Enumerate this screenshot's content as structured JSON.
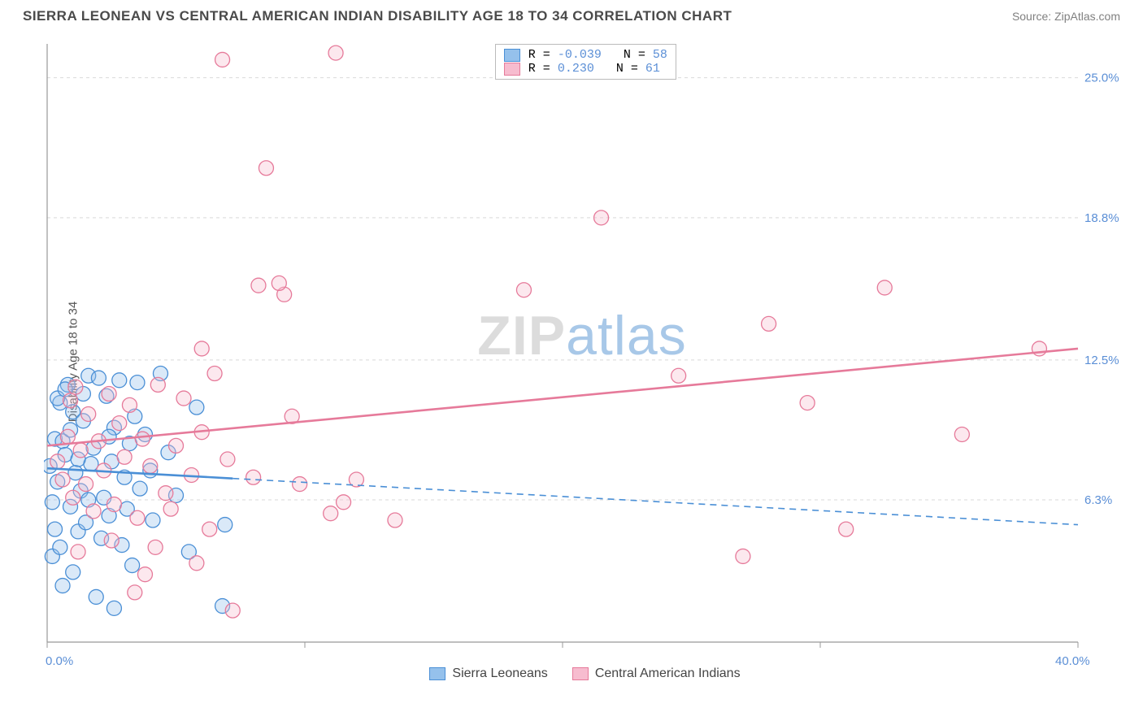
{
  "header": {
    "title": "SIERRA LEONEAN VS CENTRAL AMERICAN INDIAN DISABILITY AGE 18 TO 34 CORRELATION CHART",
    "source": "Source: ZipAtlas.com"
  },
  "watermark": {
    "zip": "ZIP",
    "atlas": "atlas"
  },
  "chart": {
    "type": "scatter",
    "ylabel": "Disability Age 18 to 34",
    "xlim": [
      0,
      40.0
    ],
    "ylim": [
      0,
      26.5
    ],
    "x_ticks": [
      0,
      10,
      20,
      30,
      40
    ],
    "y_ticks": [
      6.3,
      12.5,
      18.8,
      25.0
    ],
    "x_tick_labels": {
      "min": "0.0%",
      "max": "40.0%"
    },
    "y_tick_labels": [
      "6.3%",
      "12.5%",
      "18.8%",
      "25.0%"
    ],
    "axis_color": "#999999",
    "grid_color": "#d9d9d9",
    "grid_dash": "4,4",
    "label_color": "#5b8fd6",
    "marker_radius": 9,
    "marker_fill_opacity": 0.35,
    "marker_stroke_width": 1.3,
    "trend_line_width": 2.6,
    "trend_dash_width": 1.6,
    "series": [
      {
        "key": "sierra",
        "label": "Sierra Leoneans",
        "color_stroke": "#4a8fd6",
        "color_fill": "#95c1ec",
        "r_value": "-0.039",
        "n_value": "58",
        "trend": {
          "x1": 0,
          "y1": 7.7,
          "x2": 40,
          "y2": 5.2,
          "solid_until_x": 7.2
        },
        "points": [
          [
            0.1,
            7.8
          ],
          [
            0.3,
            9.0
          ],
          [
            0.2,
            6.2
          ],
          [
            0.5,
            10.6
          ],
          [
            0.3,
            5.0
          ],
          [
            0.8,
            11.4
          ],
          [
            0.6,
            8.9
          ],
          [
            0.4,
            7.1
          ],
          [
            0.9,
            6.0
          ],
          [
            1.0,
            10.2
          ],
          [
            1.1,
            7.5
          ],
          [
            0.7,
            8.3
          ],
          [
            1.2,
            4.9
          ],
          [
            1.4,
            9.8
          ],
          [
            1.3,
            6.7
          ],
          [
            1.6,
            11.8
          ],
          [
            1.7,
            7.9
          ],
          [
            1.5,
            5.3
          ],
          [
            1.8,
            8.6
          ],
          [
            2.0,
            11.7
          ],
          [
            2.1,
            4.6
          ],
          [
            2.3,
            10.9
          ],
          [
            2.2,
            6.4
          ],
          [
            2.5,
            8.0
          ],
          [
            2.6,
            9.5
          ],
          [
            2.4,
            5.6
          ],
          [
            2.8,
            11.6
          ],
          [
            3.0,
            7.3
          ],
          [
            3.2,
            8.8
          ],
          [
            3.1,
            5.9
          ],
          [
            3.4,
            10.0
          ],
          [
            3.6,
            6.8
          ],
          [
            3.5,
            11.5
          ],
          [
            0.2,
            3.8
          ],
          [
            0.6,
            2.5
          ],
          [
            1.0,
            3.1
          ],
          [
            1.9,
            2.0
          ],
          [
            2.6,
            1.5
          ],
          [
            1.4,
            11.0
          ],
          [
            0.5,
            4.2
          ],
          [
            2.9,
            4.3
          ],
          [
            3.8,
            9.2
          ],
          [
            4.0,
            7.6
          ],
          [
            4.4,
            11.9
          ],
          [
            4.1,
            5.4
          ],
          [
            4.7,
            8.4
          ],
          [
            5.0,
            6.5
          ],
          [
            5.5,
            4.0
          ],
          [
            5.8,
            10.4
          ],
          [
            3.3,
            3.4
          ],
          [
            0.4,
            10.8
          ],
          [
            0.9,
            9.4
          ],
          [
            1.2,
            8.1
          ],
          [
            1.6,
            6.3
          ],
          [
            2.4,
            9.1
          ],
          [
            0.7,
            11.2
          ],
          [
            6.8,
            1.6
          ],
          [
            6.9,
            5.2
          ]
        ]
      },
      {
        "key": "central",
        "label": "Central American Indians",
        "color_stroke": "#e67a9a",
        "color_fill": "#f7bccf",
        "r_value": "0.230",
        "n_value": "61",
        "trend": {
          "x1": 0,
          "y1": 8.7,
          "x2": 40,
          "y2": 13.0,
          "solid_until_x": 40
        },
        "points": [
          [
            0.4,
            8.0
          ],
          [
            0.6,
            7.2
          ],
          [
            0.8,
            9.1
          ],
          [
            1.0,
            6.4
          ],
          [
            1.1,
            11.3
          ],
          [
            1.3,
            8.5
          ],
          [
            1.5,
            7.0
          ],
          [
            1.6,
            10.1
          ],
          [
            1.8,
            5.8
          ],
          [
            2.0,
            8.9
          ],
          [
            2.2,
            7.6
          ],
          [
            2.4,
            11.0
          ],
          [
            2.6,
            6.1
          ],
          [
            2.8,
            9.7
          ],
          [
            3.0,
            8.2
          ],
          [
            3.2,
            10.5
          ],
          [
            3.5,
            5.5
          ],
          [
            3.7,
            9.0
          ],
          [
            4.0,
            7.8
          ],
          [
            4.3,
            11.4
          ],
          [
            4.6,
            6.6
          ],
          [
            5.0,
            8.7
          ],
          [
            5.3,
            10.8
          ],
          [
            5.6,
            7.4
          ],
          [
            6.0,
            9.3
          ],
          [
            6.5,
            11.9
          ],
          [
            7.0,
            8.1
          ],
          [
            7.2,
            1.4
          ],
          [
            4.2,
            4.2
          ],
          [
            3.8,
            3.0
          ],
          [
            2.5,
            4.5
          ],
          [
            5.8,
            3.5
          ],
          [
            6.3,
            5.0
          ],
          [
            6.8,
            25.8
          ],
          [
            11.2,
            26.1
          ],
          [
            8.2,
            15.8
          ],
          [
            8.5,
            21.0
          ],
          [
            9.2,
            15.4
          ],
          [
            9.0,
            15.9
          ],
          [
            6.0,
            13.0
          ],
          [
            9.8,
            7.0
          ],
          [
            11.5,
            6.2
          ],
          [
            11.0,
            5.7
          ],
          [
            12.0,
            7.2
          ],
          [
            13.5,
            5.4
          ],
          [
            18.5,
            15.6
          ],
          [
            21.5,
            18.8
          ],
          [
            24.5,
            11.8
          ],
          [
            28.0,
            14.1
          ],
          [
            29.5,
            10.6
          ],
          [
            31.0,
            5.0
          ],
          [
            32.5,
            15.7
          ],
          [
            35.5,
            9.2
          ],
          [
            27.0,
            3.8
          ],
          [
            38.5,
            13.0
          ],
          [
            9.5,
            10.0
          ],
          [
            8.0,
            7.3
          ],
          [
            4.8,
            5.9
          ],
          [
            1.2,
            4.0
          ],
          [
            3.4,
            2.2
          ],
          [
            0.9,
            10.7
          ]
        ]
      }
    ]
  },
  "legend_top": {
    "r_label": "R =",
    "n_label": "N ="
  }
}
